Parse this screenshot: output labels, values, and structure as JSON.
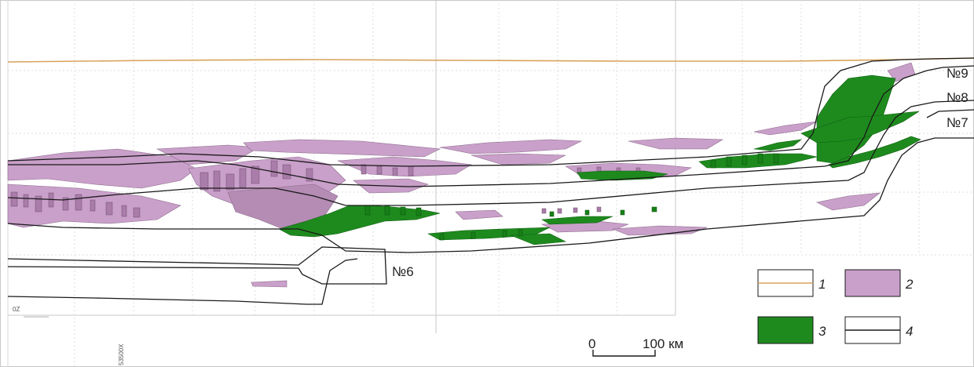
{
  "zones": {
    "n9": "№9",
    "n8": "№8",
    "n7": "№7",
    "n6": "№6"
  },
  "scale_bar": {
    "start": "0",
    "end": "100 км"
  },
  "legend": [
    {
      "num": "1",
      "symbol": "terrain-line"
    },
    {
      "num": "2",
      "symbol": "pink-fill"
    },
    {
      "num": "3",
      "symbol": "green-fill"
    },
    {
      "num": "4",
      "symbol": "contour-line"
    }
  ],
  "side_labels": {
    "z_mark": "0Z",
    "x_coord": "53500X"
  },
  "colors": {
    "terrain": "#d9a35a",
    "pink": "#c9a0c9",
    "pink_dark": "#8c6a8c",
    "green": "#1e8a1e",
    "green_dark": "#0d5e0d",
    "contour": "#1a1a1a",
    "grid": "#d6d6d6"
  }
}
